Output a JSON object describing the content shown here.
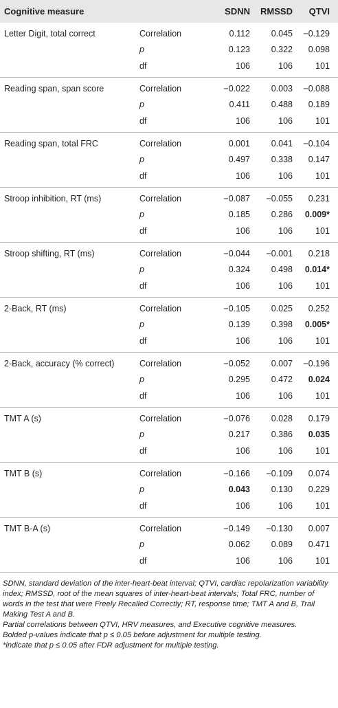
{
  "header": {
    "measure": "Cognitive measure",
    "sdnn": "SDNN",
    "rmssd": "RMSSD",
    "qtvi": "QTVI"
  },
  "groups": [
    {
      "measure": "Letter Digit, total correct",
      "rows": [
        {
          "stat": "Correlation",
          "sdnn": "0.112",
          "rmssd": "0.045",
          "qtvi": "−0.129",
          "sdnn_bold": false,
          "qtvi_bold": false
        },
        {
          "stat": "p",
          "sdnn": "0.123",
          "rmssd": "0.322",
          "qtvi": "0.098",
          "sdnn_bold": false,
          "qtvi_bold": false
        },
        {
          "stat": "df",
          "sdnn": "106",
          "rmssd": "106",
          "qtvi": "101",
          "sdnn_bold": false,
          "qtvi_bold": false
        }
      ]
    },
    {
      "measure": "Reading span, span score",
      "rows": [
        {
          "stat": "Correlation",
          "sdnn": "−0.022",
          "rmssd": "0.003",
          "qtvi": "−0.088",
          "sdnn_bold": false,
          "qtvi_bold": false
        },
        {
          "stat": "p",
          "sdnn": "0.411",
          "rmssd": "0.488",
          "qtvi": "0.189",
          "sdnn_bold": false,
          "qtvi_bold": false
        },
        {
          "stat": "df",
          "sdnn": "106",
          "rmssd": "106",
          "qtvi": "101",
          "sdnn_bold": false,
          "qtvi_bold": false
        }
      ]
    },
    {
      "measure": "Reading span, total FRC",
      "rows": [
        {
          "stat": "Correlation",
          "sdnn": "0.001",
          "rmssd": "0.041",
          "qtvi": "−0.104",
          "sdnn_bold": false,
          "qtvi_bold": false
        },
        {
          "stat": "p",
          "sdnn": "0.497",
          "rmssd": "0.338",
          "qtvi": "0.147",
          "sdnn_bold": false,
          "qtvi_bold": false
        },
        {
          "stat": "df",
          "sdnn": "106",
          "rmssd": "106",
          "qtvi": "101",
          "sdnn_bold": false,
          "qtvi_bold": false
        }
      ]
    },
    {
      "measure": "Stroop inhibition, RT (ms)",
      "rows": [
        {
          "stat": "Correlation",
          "sdnn": "−0.087",
          "rmssd": "−0.055",
          "qtvi": "0.231",
          "sdnn_bold": false,
          "qtvi_bold": false
        },
        {
          "stat": "p",
          "sdnn": "0.185",
          "rmssd": "0.286",
          "qtvi": "0.009*",
          "sdnn_bold": false,
          "qtvi_bold": true
        },
        {
          "stat": "df",
          "sdnn": "106",
          "rmssd": "106",
          "qtvi": "101",
          "sdnn_bold": false,
          "qtvi_bold": false
        }
      ]
    },
    {
      "measure": "Stroop shifting, RT (ms)",
      "rows": [
        {
          "stat": "Correlation",
          "sdnn": "−0.044",
          "rmssd": "−0.001",
          "qtvi": "0.218",
          "sdnn_bold": false,
          "qtvi_bold": false
        },
        {
          "stat": "p",
          "sdnn": "0.324",
          "rmssd": "0.498",
          "qtvi": "0.014*",
          "sdnn_bold": false,
          "qtvi_bold": true
        },
        {
          "stat": "df",
          "sdnn": "106",
          "rmssd": "106",
          "qtvi": "101",
          "sdnn_bold": false,
          "qtvi_bold": false
        }
      ]
    },
    {
      "measure": "2-Back, RT (ms)",
      "rows": [
        {
          "stat": "Correlation",
          "sdnn": "−0.105",
          "rmssd": "0.025",
          "qtvi": "0.252",
          "sdnn_bold": false,
          "qtvi_bold": false
        },
        {
          "stat": "p",
          "sdnn": "0.139",
          "rmssd": "0.398",
          "qtvi": "0.005*",
          "sdnn_bold": false,
          "qtvi_bold": true
        },
        {
          "stat": "df",
          "sdnn": "106",
          "rmssd": "106",
          "qtvi": "101",
          "sdnn_bold": false,
          "qtvi_bold": false
        }
      ]
    },
    {
      "measure": "2-Back, accuracy (% correct)",
      "rows": [
        {
          "stat": "Correlation",
          "sdnn": "−0.052",
          "rmssd": "0.007",
          "qtvi": "−0.196",
          "sdnn_bold": false,
          "qtvi_bold": false
        },
        {
          "stat": "p",
          "sdnn": "0.295",
          "rmssd": "0.472",
          "qtvi": "0.024",
          "sdnn_bold": false,
          "qtvi_bold": true
        },
        {
          "stat": "df",
          "sdnn": "106",
          "rmssd": "106",
          "qtvi": "101",
          "sdnn_bold": false,
          "qtvi_bold": false
        }
      ]
    },
    {
      "measure": "TMT A (s)",
      "rows": [
        {
          "stat": "Correlation",
          "sdnn": "−0.076",
          "rmssd": "0.028",
          "qtvi": "0.179",
          "sdnn_bold": false,
          "qtvi_bold": false
        },
        {
          "stat": "p",
          "sdnn": "0.217",
          "rmssd": "0.386",
          "qtvi": "0.035",
          "sdnn_bold": false,
          "qtvi_bold": true
        },
        {
          "stat": "df",
          "sdnn": "106",
          "rmssd": "106",
          "qtvi": "101",
          "sdnn_bold": false,
          "qtvi_bold": false
        }
      ]
    },
    {
      "measure": "TMT B (s)",
      "rows": [
        {
          "stat": "Correlation",
          "sdnn": "−0.166",
          "rmssd": "−0.109",
          "qtvi": "0.074",
          "sdnn_bold": false,
          "qtvi_bold": false
        },
        {
          "stat": "p",
          "sdnn": "0.043",
          "rmssd": "0.130",
          "qtvi": "0.229",
          "sdnn_bold": true,
          "qtvi_bold": false
        },
        {
          "stat": "df",
          "sdnn": "106",
          "rmssd": "106",
          "qtvi": "101",
          "sdnn_bold": false,
          "qtvi_bold": false
        }
      ]
    },
    {
      "measure": "TMT B-A (s)",
      "rows": [
        {
          "stat": "Correlation",
          "sdnn": "−0.149",
          "rmssd": "−0.130",
          "qtvi": "0.007",
          "sdnn_bold": false,
          "qtvi_bold": false
        },
        {
          "stat": "p",
          "sdnn": "0.062",
          "rmssd": "0.089",
          "qtvi": "0.471",
          "sdnn_bold": false,
          "qtvi_bold": false
        },
        {
          "stat": "df",
          "sdnn": "106",
          "rmssd": "106",
          "qtvi": "101",
          "sdnn_bold": false,
          "qtvi_bold": false
        }
      ]
    }
  ],
  "footnotes": {
    "abbreviations": "SDNN, standard deviation of the inter-heart-beat interval; QTVI, cardiac repolarization variability index; RMSSD, root of the mean squares of inter-heart-beat intervals; Total FRC, number of words in the test that were Freely Recalled Correctly; RT, response time; TMT A and B, Trail Making Test A and B.",
    "caption": "Partial correlations between QTVI, HRV measures, and Executive cognitive measures.",
    "bolded": "Bolded p-values indicate that p ≤ 0.05 before adjustment for multiple testing.",
    "asterisk": "*indicate that p ≤ 0.05 after FDR adjustment for multiple testing."
  }
}
